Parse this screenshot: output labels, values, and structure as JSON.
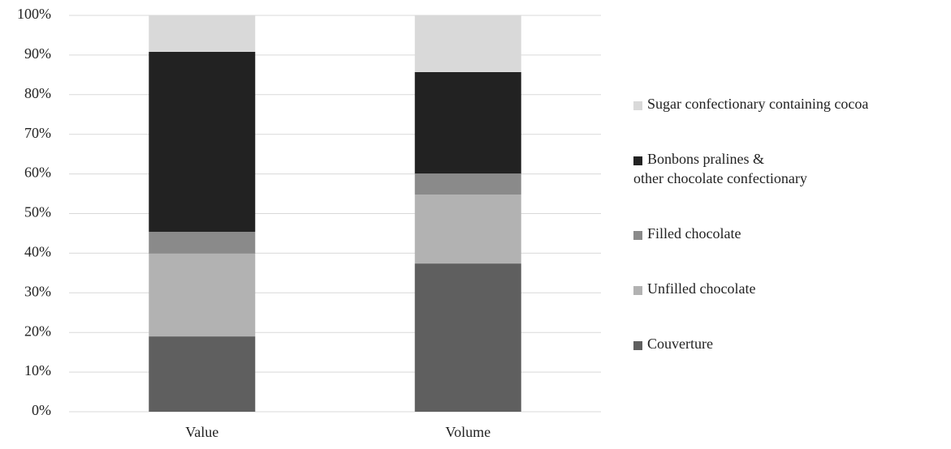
{
  "chart_data": {
    "type": "stacked_bar",
    "categories": [
      "Value",
      "Volume"
    ],
    "series": [
      {
        "name": "Couverture",
        "color": "#5f5f5f",
        "values": [
          19.0,
          37.4
        ]
      },
      {
        "name": "Unfilled chocolate",
        "color": "#b2b2b2",
        "values": [
          20.9,
          17.4
        ]
      },
      {
        "name": "Filled chocolate",
        "color": "#8a8a8a",
        "values": [
          5.5,
          5.3
        ]
      },
      {
        "name": "Bonbons pralines & other chocolate confectionary",
        "color": "#222222",
        "values": [
          45.4,
          25.6
        ]
      },
      {
        "name": "Sugar confectionary containing cocoa",
        "color": "#d9d9d9",
        "values": [
          9.2,
          14.3
        ]
      }
    ],
    "ylim": [
      0,
      100
    ],
    "yticks": [
      {
        "value": 0,
        "label": "0%"
      },
      {
        "value": 10,
        "label": "10%"
      },
      {
        "value": 20,
        "label": "20%"
      },
      {
        "value": 30,
        "label": "30%"
      },
      {
        "value": 40,
        "label": "40%"
      },
      {
        "value": 50,
        "label": "50%"
      },
      {
        "value": 60,
        "label": "60%"
      },
      {
        "value": 70,
        "label": "70%"
      },
      {
        "value": 80,
        "label": "80%"
      },
      {
        "value": 90,
        "label": "90%"
      },
      {
        "value": 100,
        "label": "100%"
      }
    ],
    "grid": true,
    "legend": "right"
  }
}
